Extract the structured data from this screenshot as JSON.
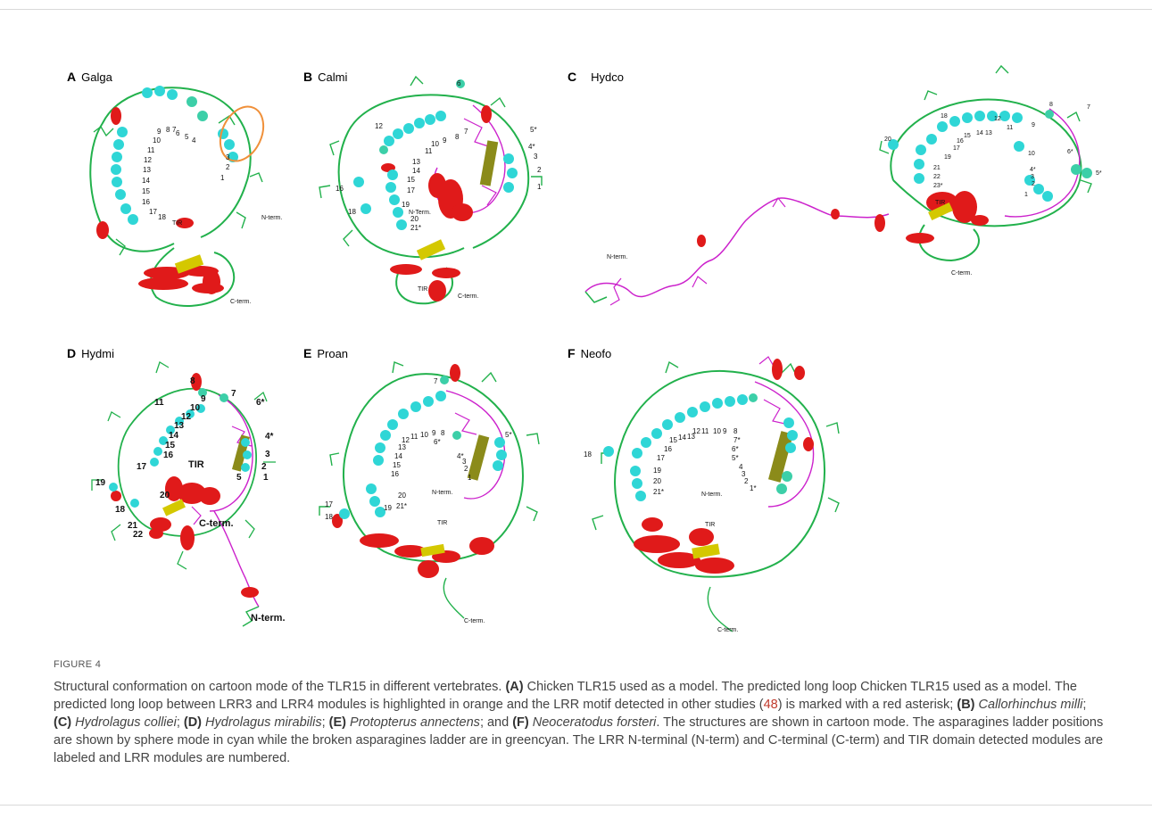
{
  "panels": [
    {
      "letter": "A",
      "name": "Galga",
      "labels": [
        "1",
        "2",
        "3",
        "4",
        "5",
        "6",
        "7",
        "8",
        "9",
        "10",
        "11",
        "12",
        "13",
        "14",
        "15",
        "16",
        "17",
        "18",
        "TIR",
        "N-term.",
        "C-term."
      ]
    },
    {
      "letter": "B",
      "name": "Calmi",
      "labels": [
        "1",
        "2",
        "3",
        "4*",
        "5*",
        "6",
        "7",
        "8",
        "9",
        "10",
        "11",
        "12",
        "13",
        "14",
        "15",
        "16",
        "17",
        "18",
        "19",
        "20",
        "21*",
        "TIR",
        "N-Term.",
        "C-term."
      ]
    },
    {
      "letter": "C",
      "name": "Hydco",
      "labels": [
        "1",
        "2",
        "3",
        "4*",
        "5*",
        "6*",
        "7",
        "8",
        "9",
        "10",
        "11",
        "12",
        "13",
        "14",
        "15",
        "16",
        "17",
        "18",
        "19",
        "20",
        "21",
        "22",
        "23*",
        "TIR",
        "N-term.",
        "C-term."
      ]
    },
    {
      "letter": "D",
      "name": "Hydmi",
      "labels": [
        "1",
        "2",
        "3",
        "4*",
        "5",
        "6*",
        "7",
        "8",
        "9",
        "10",
        "11",
        "12",
        "13",
        "14",
        "15",
        "16",
        "17",
        "18",
        "19",
        "20",
        "21",
        "22",
        "TIR",
        "C-term.",
        "N-term."
      ]
    },
    {
      "letter": "E",
      "name": "Proan",
      "labels": [
        "1",
        "2",
        "3",
        "4*",
        "5*",
        "6*",
        "7",
        "8",
        "9",
        "10",
        "11",
        "12",
        "13",
        "14",
        "15",
        "16",
        "17",
        "18",
        "19",
        "20",
        "21*",
        "TIR",
        "N-term.",
        "C-term."
      ]
    },
    {
      "letter": "F",
      "name": "Neofo",
      "labels": [
        "1*",
        "2",
        "3",
        "4",
        "5*",
        "6*",
        "7*",
        "8",
        "9",
        "10",
        "11",
        "12",
        "13",
        "14",
        "15",
        "16",
        "17",
        "18",
        "19",
        "20",
        "21*",
        "TIR",
        "N-term.",
        "C-term."
      ]
    }
  ],
  "colors": {
    "coil": "#22b14c",
    "helix": "#e01a1a",
    "strand": "#d4c800",
    "magenta": "#cc22cc",
    "cyan": "#2fd6d6",
    "greencyan": "#3ccfa8",
    "orange": "#f0903a"
  },
  "figure": {
    "title": "FIGURE 4"
  },
  "caption": {
    "c1": "Structural conformation on cartoon mode of the TLR15 in different vertebrates. ",
    "c2": "(A)",
    "c3": " Chicken TLR15 used as a model. The predicted long loop Chicken TLR15 used as a model. The predicted long loop between LRR3 and LRR4 modules is highlighted in orange and the LRR motif detected in other studies (",
    "c4": "48",
    "c5": ") is marked with a red asterisk; ",
    "c6": "(B)",
    "c7": "Callorhinchus milli",
    "c8": "; ",
    "c9": "(C)",
    "c10": "Hydrolagus colliei",
    "c11": "; ",
    "c12": "(D)",
    "c13": "Hydrolagus mirabilis",
    "c14": "; ",
    "c15": "(E)",
    "c16": "Protopterus annectens",
    "c17": "; and ",
    "c18": "(F)",
    "c19": "Neoceratodus forsteri",
    "c20": ". The structures are shown in cartoon mode. The asparagines ladder positions are shown by sphere mode in cyan while the broken asparagines ladder are in greencyan. The LRR N-terminal (N-term) and C-terminal (C-term) and TIR domain detected modules are labeled and LRR modules are numbered."
  }
}
